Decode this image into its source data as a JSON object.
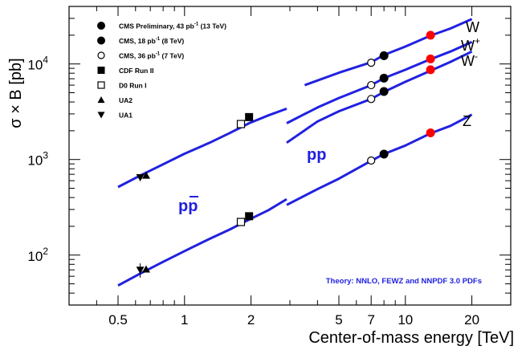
{
  "chart_data": {
    "type": "line",
    "xlabel": "Center-of-mass energy [TeV]",
    "ylabel": "σ × B [pb]",
    "x_scale": "log",
    "y_scale": "log",
    "xlim": [
      0.3,
      30
    ],
    "ylim": [
      30,
      40000
    ],
    "x_ticks": [
      {
        "value": 0.5,
        "label": "0.5"
      },
      {
        "value": 1,
        "label": "1"
      },
      {
        "value": 2,
        "label": "2"
      },
      {
        "value": 5,
        "label": "5"
      },
      {
        "value": 7,
        "label": "7"
      },
      {
        "value": 10,
        "label": "10"
      },
      {
        "value": 20,
        "label": "20"
      }
    ],
    "y_ticks": [
      {
        "value": 100,
        "base": "10",
        "exp": "2"
      },
      {
        "value": 1000,
        "base": "10",
        "exp": "3"
      },
      {
        "value": 10000,
        "base": "10",
        "exp": "4"
      }
    ],
    "grid": false,
    "legend_position": "top-left",
    "legend": [
      {
        "label": "CMS Preliminary, 43 pb",
        "sup": "-1",
        "suffix": " (13 TeV)",
        "marker": "circle-filled",
        "color": "#ff0000"
      },
      {
        "label": "CMS, 18 pb",
        "sup": "-1",
        "suffix": " (8 TeV)",
        "marker": "circle-filled",
        "color": "#000000"
      },
      {
        "label": "CMS, 36 pb",
        "sup": "-1",
        "suffix": " (7 TeV)",
        "marker": "circle-open",
        "color": "#000000"
      },
      {
        "label": "CDF Run II",
        "sup": "",
        "suffix": "",
        "marker": "square-filled",
        "color": "#000000"
      },
      {
        "label": "D0 Run I",
        "sup": "",
        "suffix": "",
        "marker": "square-open",
        "color": "#000000"
      },
      {
        "label": "UA2",
        "sup": "",
        "suffix": "",
        "marker": "triangle-up",
        "color": "#000000"
      },
      {
        "label": "UA1",
        "sup": "",
        "suffix": "",
        "marker": "triangle-down",
        "color": "#000000"
      }
    ],
    "series": [
      {
        "name": "W",
        "color": "#2121e0",
        "segments": [
          [
            [
              0.5,
              515
            ],
            [
              0.63,
              680
            ],
            [
              0.8,
              890
            ],
            [
              1.0,
              1150
            ],
            [
              1.3,
              1500
            ],
            [
              1.6,
              1890
            ],
            [
              1.96,
              2400
            ],
            [
              2.4,
              2900
            ],
            [
              2.9,
              3400
            ]
          ],
          [
            [
              3.5,
              6000
            ],
            [
              5,
              8100
            ],
            [
              7,
              10400
            ],
            [
              8,
              12400
            ],
            [
              10,
              15200
            ],
            [
              13,
              19800
            ],
            [
              16,
              23500
            ],
            [
              20,
              29500
            ]
          ]
        ]
      },
      {
        "name": "W+",
        "sup": "+",
        "color": "#2121e0",
        "segments": [
          [
            [
              2.9,
              2400
            ],
            [
              4,
              3500
            ],
            [
              5,
              4400
            ],
            [
              7,
              6000
            ],
            [
              8,
              7100
            ],
            [
              10,
              8700
            ],
            [
              13,
              11200
            ],
            [
              16,
              13500
            ],
            [
              20,
              17000
            ]
          ]
        ]
      },
      {
        "name": "W-",
        "sup": "-",
        "color": "#2121e0",
        "segments": [
          [
            [
              2.9,
              1500
            ],
            [
              4,
              2500
            ],
            [
              5,
              3200
            ],
            [
              7,
              4300
            ],
            [
              8,
              5100
            ],
            [
              10,
              6500
            ],
            [
              13,
              8500
            ],
            [
              16,
              10500
            ],
            [
              20,
              13500
            ]
          ]
        ]
      },
      {
        "name": "Z",
        "color": "#2121e0",
        "segments": [
          [
            [
              0.5,
              48
            ],
            [
              0.63,
              64
            ],
            [
              0.8,
              85
            ],
            [
              1.0,
              110
            ],
            [
              1.3,
              148
            ],
            [
              1.6,
              185
            ],
            [
              1.96,
              235
            ],
            [
              2.4,
              295
            ],
            [
              2.9,
              385
            ]
          ],
          [
            [
              2.9,
              335
            ],
            [
              4,
              490
            ],
            [
              5,
              630
            ],
            [
              7,
              970
            ],
            [
              8,
              1140
            ],
            [
              10,
              1400
            ],
            [
              13,
              1880
            ],
            [
              16,
              2250
            ],
            [
              20,
              2950
            ]
          ]
        ]
      }
    ],
    "measurements": [
      {
        "experiment": "UA1",
        "process": "W",
        "x": 0.63,
        "y": 650,
        "marker": "triangle-down"
      },
      {
        "experiment": "UA2",
        "process": "W",
        "x": 0.67,
        "y": 680,
        "marker": "triangle-up"
      },
      {
        "experiment": "UA1",
        "process": "Z",
        "x": 0.63,
        "y": 70,
        "yerr": 12,
        "marker": "triangle-down"
      },
      {
        "experiment": "UA2",
        "process": "Z",
        "x": 0.67,
        "y": 71,
        "marker": "triangle-up"
      },
      {
        "experiment": "D0 Run I",
        "process": "W",
        "x": 1.8,
        "y": 2350,
        "marker": "square-open"
      },
      {
        "experiment": "CDF Run II",
        "process": "W",
        "x": 1.96,
        "y": 2780,
        "marker": "square-filled"
      },
      {
        "experiment": "D0 Run I",
        "process": "Z",
        "x": 1.8,
        "y": 222,
        "marker": "square-open"
      },
      {
        "experiment": "CDF Run II",
        "process": "Z",
        "x": 1.96,
        "y": 255,
        "marker": "square-filled"
      },
      {
        "experiment": "CMS 7 TeV",
        "process": "W",
        "x": 7,
        "y": 10300,
        "marker": "circle-open"
      },
      {
        "experiment": "CMS 7 TeV",
        "process": "W+",
        "x": 7,
        "y": 6000,
        "marker": "circle-open"
      },
      {
        "experiment": "CMS 7 TeV",
        "process": "W-",
        "x": 7,
        "y": 4300,
        "marker": "circle-open"
      },
      {
        "experiment": "CMS 7 TeV",
        "process": "Z",
        "x": 7,
        "y": 975,
        "marker": "circle-open"
      },
      {
        "experiment": "CMS 8 TeV",
        "process": "W",
        "x": 8,
        "y": 12200,
        "marker": "circle-filled"
      },
      {
        "experiment": "CMS 8 TeV",
        "process": "W+",
        "x": 8,
        "y": 7100,
        "marker": "circle-filled"
      },
      {
        "experiment": "CMS 8 TeV",
        "process": "W-",
        "x": 8,
        "y": 5150,
        "marker": "circle-filled"
      },
      {
        "experiment": "CMS 8 TeV",
        "process": "Z",
        "x": 8,
        "y": 1140,
        "marker": "circle-filled"
      },
      {
        "experiment": "CMS 13 TeV",
        "process": "W",
        "x": 13,
        "y": 20000,
        "marker": "circle-red"
      },
      {
        "experiment": "CMS 13 TeV",
        "process": "W+",
        "x": 13,
        "y": 11300,
        "marker": "circle-red"
      },
      {
        "experiment": "CMS 13 TeV",
        "process": "W-",
        "x": 13,
        "y": 8700,
        "marker": "circle-red"
      },
      {
        "experiment": "CMS 13 TeV",
        "process": "Z",
        "x": 13,
        "y": 1900,
        "marker": "circle-red"
      }
    ],
    "annotations": {
      "ppbar": {
        "base": "p",
        "bar": "p"
      },
      "pp": "pp",
      "theory": "Theory: NNLO, FEWZ and NNPDF 3.0 PDFs"
    },
    "colors": {
      "theory_line": "#2121e0",
      "cms_13tev": "#ff0000",
      "marker": "#000000"
    }
  }
}
